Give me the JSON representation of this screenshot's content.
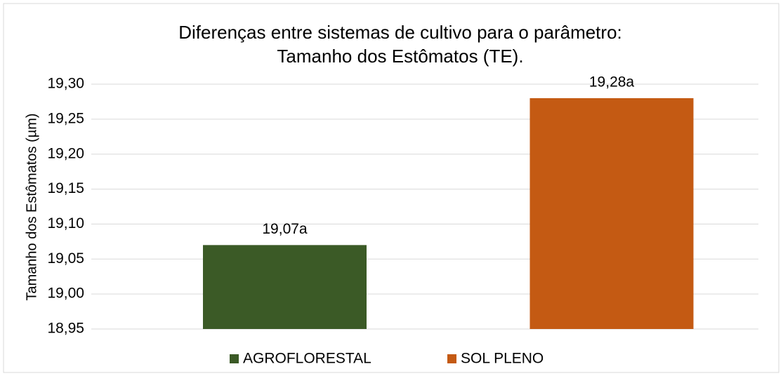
{
  "chart_data": {
    "type": "bar",
    "title": [
      "Diferenças entre sistemas de cultivo para o parâmetro:",
      "Tamanho dos Estômatos (TE)."
    ],
    "y_label": "Tamanho dos Estômatos (µm)",
    "categories": [
      null
    ],
    "series": [
      {
        "name": "AGROFLORESTAL",
        "color": "#3b5a26",
        "values": [
          19.07
        ],
        "value_labels": [
          "19,07a"
        ]
      },
      {
        "name": "SOL PLENO",
        "color": "#c45a13",
        "values": [
          19.28
        ],
        "value_labels": [
          "19,28a"
        ]
      }
    ],
    "ylim": [
      18.95,
      19.3
    ],
    "yticks": [
      {
        "value": 18.95,
        "label": "18,95"
      },
      {
        "value": 19.0,
        "label": "19,00"
      },
      {
        "value": 19.05,
        "label": "19,05"
      },
      {
        "value": 19.1,
        "label": "19,10"
      },
      {
        "value": 19.15,
        "label": "19,15"
      },
      {
        "value": 19.2,
        "label": "19,20"
      },
      {
        "value": 19.25,
        "label": "19,25"
      },
      {
        "value": 19.3,
        "label": "19,30"
      }
    ],
    "grid": true,
    "legend": "bottom"
  }
}
